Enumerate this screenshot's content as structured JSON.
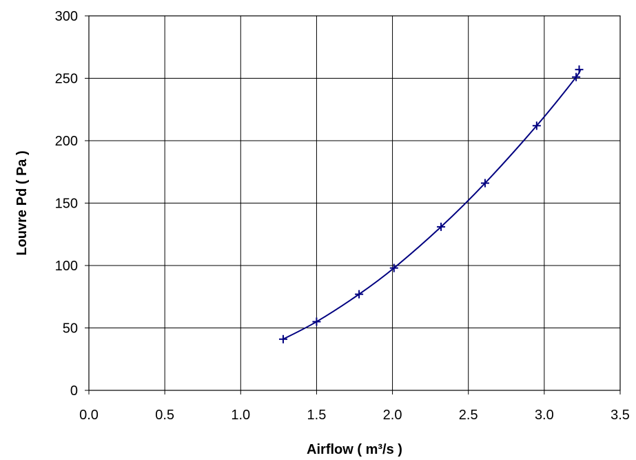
{
  "chart_data": {
    "type": "line",
    "title": "",
    "xlabel": "Airflow  ( m³/s )",
    "ylabel": "Louvre Pd  ( Pa )",
    "xlim": [
      0,
      3.5
    ],
    "ylim": [
      0,
      300
    ],
    "x_ticks": [
      "0.0",
      "0.5",
      "1.0",
      "1.5",
      "2.0",
      "2.5",
      "3.0",
      "3.5"
    ],
    "y_ticks": [
      "0",
      "50",
      "100",
      "150",
      "200",
      "250",
      "300"
    ],
    "grid": true,
    "legend": "none",
    "series": [
      {
        "marker": "plus",
        "color": "#000080",
        "x": [
          1.28,
          1.5,
          1.78,
          2.01,
          2.32,
          2.61,
          2.95,
          3.21,
          3.23
        ],
        "y": [
          41,
          55,
          77,
          98,
          131,
          166,
          212,
          251,
          257
        ]
      }
    ]
  }
}
